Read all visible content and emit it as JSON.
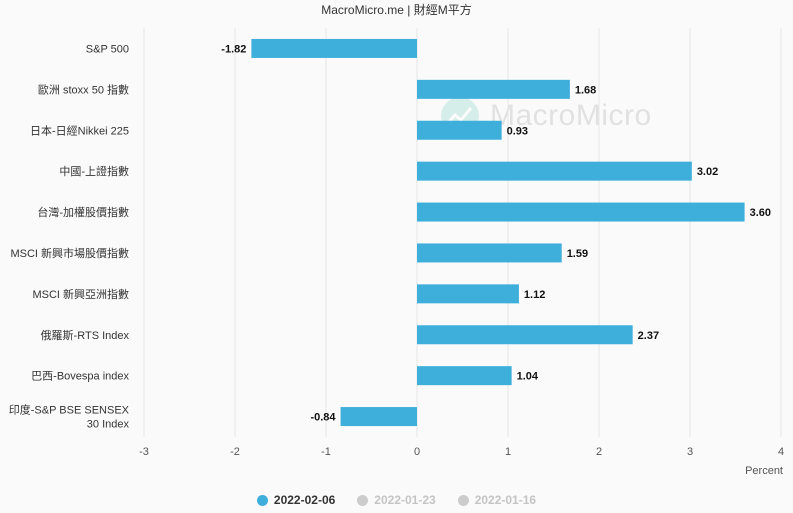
{
  "header": {
    "credit": "MacroMicro.me | 財經M平方"
  },
  "watermark": {
    "text": "MacroMicro",
    "icon": "macromicro-logo-icon"
  },
  "colors": {
    "bar": "#3eaedb",
    "grid": "#e6e6e6",
    "inactive": "#cccccc",
    "text": "#333333"
  },
  "chart_data": {
    "type": "bar",
    "orientation": "horizontal",
    "categories": [
      "S&P 500",
      "歐洲 stoxx 50 指數",
      "日本-日經Nikkei 225",
      "中國-上證指數",
      "台灣-加權股價指數",
      "MSCI 新興市場股價指數",
      "MSCI 新興亞洲指數",
      "俄羅斯-RTS Index",
      "巴西-Bovespa index",
      "印度-S&P BSE SENSEX 30 Index"
    ],
    "series": [
      {
        "name": "2022-02-06",
        "values": [
          -1.82,
          1.68,
          0.93,
          3.02,
          3.6,
          1.59,
          1.12,
          2.37,
          1.04,
          -0.84
        ],
        "data_labels": [
          "-1.82",
          "1.68",
          "0.93",
          "3.02",
          "3.60",
          "1.59",
          "1.12",
          "2.37",
          "1.04",
          "-0.84"
        ]
      }
    ],
    "xlim": [
      -3,
      4
    ],
    "xticks": [
      "-3",
      "-2",
      "-1",
      "0",
      "1",
      "2",
      "3",
      "4"
    ],
    "xlabel": "Percent",
    "grid": true,
    "legend_position": "bottom"
  },
  "legend": [
    {
      "label": "2022-02-06",
      "active": true,
      "color": "#3eaedb"
    },
    {
      "label": "2022-01-23",
      "active": false,
      "color": "#cccccc"
    },
    {
      "label": "2022-01-16",
      "active": false,
      "color": "#cccccc"
    }
  ]
}
